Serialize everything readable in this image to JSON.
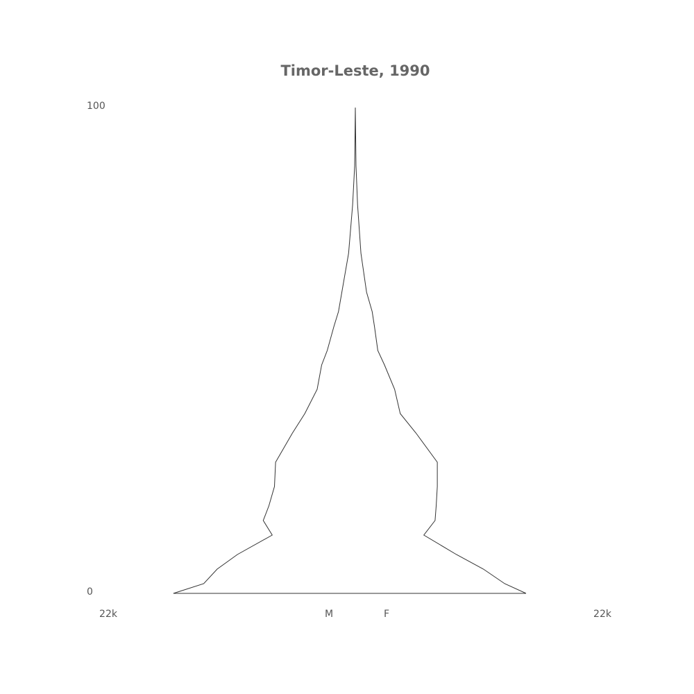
{
  "chart_data": {
    "type": "pyramid",
    "title": "Timor-Leste, 1990",
    "x": [
      0,
      2,
      5,
      8,
      12,
      15,
      18,
      22,
      27,
      33,
      37,
      42,
      47,
      50,
      55,
      58,
      62,
      70,
      80,
      88,
      100
    ],
    "series": [
      {
        "name": "M",
        "color": "#333333",
        "values": [
          16200,
          13500,
          12300,
          10500,
          7400,
          8200,
          7700,
          7200,
          7100,
          5600,
          4500,
          3400,
          3000,
          2500,
          1900,
          1500,
          1200,
          600,
          240,
          60,
          0
        ]
      },
      {
        "name": "F",
        "color": "#333333",
        "values": [
          15200,
          13300,
          11400,
          9000,
          6100,
          7100,
          7200,
          7300,
          7300,
          5400,
          4000,
          3500,
          2600,
          2000,
          1700,
          1500,
          1000,
          500,
          200,
          60,
          0
        ]
      }
    ],
    "xlim": [
      0,
      22000
    ],
    "xticks": [
      {
        "value": 22000,
        "label": "22k"
      },
      {
        "value": 22000,
        "label": "22k"
      }
    ],
    "ylim": [
      0,
      100
    ],
    "yticks": [
      0,
      100
    ]
  }
}
